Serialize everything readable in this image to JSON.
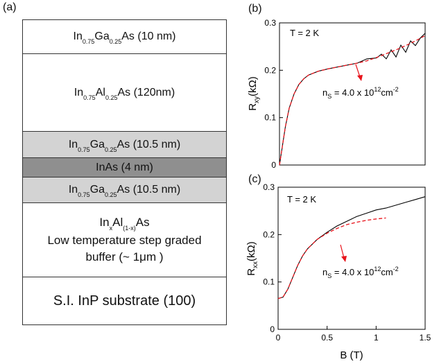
{
  "panels": {
    "a": "(a)",
    "b": "(b)",
    "c": "(c)"
  },
  "stack": {
    "layer1": {
      "el1": "In",
      "sub1": "0.75",
      "el2": "Ga",
      "sub2": "0.25",
      "el3": "As",
      "thickness": "(10 nm)"
    },
    "layer2": {
      "el1": "In",
      "sub1": "0.75",
      "el2": "Al",
      "sub2": "0.25",
      "el3": "As",
      "thickness": "(120nm)"
    },
    "layer3": {
      "el1": "In",
      "sub1": "0.75",
      "el2": "Ga",
      "sub2": "0.25",
      "el3": "As",
      "thickness": "(10.5 nm)"
    },
    "layer4": {
      "text": "InAs (4 nm)"
    },
    "layer5": {
      "el1": "In",
      "sub1": "0.75",
      "el2": "Ga",
      "sub2": "0.25",
      "el3": "As",
      "thickness": "(10.5 nm)"
    },
    "buffer": {
      "el1": "In",
      "sub1": "x",
      "el2": "Al",
      "sub2": "(1-x)",
      "el3": "As",
      "line2": "Low temperature step graded",
      "line3": "buffer (~ 1μm )"
    },
    "substrate": {
      "text": "S.I. InP substrate (100)"
    },
    "colors": {
      "white": "#ffffff",
      "light_gray": "#d3d3d3",
      "dark_gray": "#8f8f8f"
    }
  },
  "chart_data": [
    {
      "panel": "(b)",
      "type": "line",
      "annotation_temp": "T = 2 K",
      "annotation_density": {
        "prefix": "n",
        "sub": "S",
        "mid": " = 4.0 x 10",
        "sup": "12",
        "unit": "cm",
        "unit_sup": "-2"
      },
      "ylabel": {
        "main": "R",
        "sub": "xy",
        "unit": "(kΩ)"
      },
      "xlim": [
        0,
        1.5
      ],
      "ylim": [
        0,
        0.3
      ],
      "yticks": [
        "0",
        "0.1",
        "0.2",
        "0.3"
      ],
      "series": [
        {
          "style": "solid",
          "color": "#000000",
          "x": [
            0,
            0.03,
            0.06,
            0.1,
            0.15,
            0.2,
            0.25,
            0.3,
            0.4,
            0.5,
            0.6,
            0.7,
            0.8,
            0.9,
            1.0,
            1.05,
            1.1,
            1.15,
            1.2,
            1.25,
            1.3,
            1.35,
            1.4,
            1.45,
            1.5
          ],
          "y": [
            0.0,
            0.04,
            0.08,
            0.12,
            0.15,
            0.17,
            0.182,
            0.19,
            0.198,
            0.203,
            0.207,
            0.211,
            0.215,
            0.224,
            0.226,
            0.234,
            0.224,
            0.243,
            0.228,
            0.253,
            0.238,
            0.262,
            0.252,
            0.268,
            0.278
          ]
        },
        {
          "style": "dashed",
          "color": "#e8131b",
          "x": [
            0,
            0.03,
            0.06,
            0.1,
            0.15,
            0.2,
            0.25,
            0.3,
            0.4,
            0.5,
            0.6,
            0.7,
            0.8,
            0.9,
            1.0,
            1.1,
            1.2,
            1.3,
            1.4,
            1.5
          ],
          "y": [
            0.0,
            0.04,
            0.08,
            0.12,
            0.15,
            0.17,
            0.182,
            0.19,
            0.198,
            0.203,
            0.207,
            0.211,
            0.215,
            0.22,
            0.227,
            0.235,
            0.243,
            0.252,
            0.262,
            0.273
          ]
        }
      ]
    },
    {
      "panel": "(c)",
      "type": "line",
      "annotation_temp": "T = 2 K",
      "annotation_density": {
        "prefix": "n",
        "sub": "S",
        "mid": " = 4.0 x 10",
        "sup": "12",
        "unit": "cm",
        "unit_sup": "-2"
      },
      "ylabel": {
        "main": "R",
        "sub": "xx",
        "unit": "(kΩ)"
      },
      "xlabel": "B (T)",
      "xlim": [
        0,
        1.5
      ],
      "ylim": [
        0,
        0.3
      ],
      "xticks": [
        "0",
        "0.5",
        "1",
        "1.5"
      ],
      "yticks": [
        "0",
        "0.1",
        "0.2",
        "0.3"
      ],
      "series": [
        {
          "style": "solid",
          "color": "#000000",
          "x": [
            0,
            0.05,
            0.1,
            0.15,
            0.2,
            0.25,
            0.3,
            0.4,
            0.5,
            0.6,
            0.7,
            0.8,
            0.9,
            1.0,
            1.1,
            1.2,
            1.3,
            1.4,
            1.5
          ],
          "y": [
            0.065,
            0.068,
            0.085,
            0.11,
            0.135,
            0.155,
            0.17,
            0.19,
            0.205,
            0.218,
            0.228,
            0.238,
            0.245,
            0.252,
            0.256,
            0.262,
            0.268,
            0.274,
            0.28
          ]
        },
        {
          "style": "dashed",
          "color": "#e8131b",
          "x": [
            0,
            0.05,
            0.1,
            0.15,
            0.2,
            0.25,
            0.3,
            0.4,
            0.5,
            0.6,
            0.7,
            0.8,
            0.9,
            1.0,
            1.1
          ],
          "y": [
            0.065,
            0.068,
            0.085,
            0.11,
            0.135,
            0.155,
            0.17,
            0.19,
            0.203,
            0.213,
            0.221,
            0.226,
            0.23,
            0.233,
            0.235
          ]
        }
      ]
    }
  ]
}
